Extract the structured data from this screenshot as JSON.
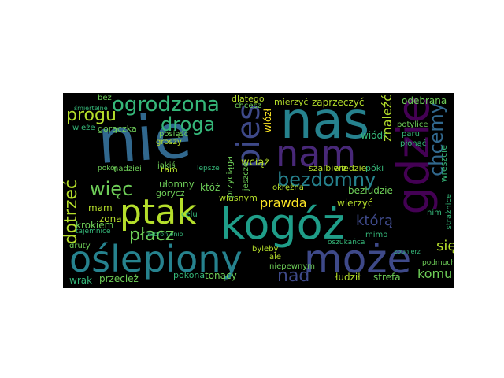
{
  "palette": {
    "yellow": "#fde725",
    "yellowgreen": "#b5de2b",
    "green": "#6ece58",
    "seagreen": "#35b779",
    "teal": "#1f9e89",
    "tealblue": "#26828e",
    "blue": "#31688e",
    "indigo": "#3e4989",
    "purple": "#482878",
    "deeppurple": "#440154"
  },
  "words": {
    "nie": "nie",
    "nas": "nas",
    "nam": "nam",
    "kogoz": "kogóż",
    "oslepiony": "oślepiony",
    "moze": "może",
    "ptak": "ptak",
    "gdzie": "gdzie",
    "pies": "pies",
    "ogrodzona": "ogrodzona",
    "droga": "droga",
    "progu": "progu",
    "bezdomny": "bezdomny",
    "chcemy": "chcemy",
    "dotrzec": "dotrzeć",
    "wiec": "więc",
    "placz": "płacz",
    "nad": "nad",
    "prawda": "prawda",
    "ktora": "którą",
    "sie": "się",
    "komu": "komu",
    "zaprzeczyc": "zaprzeczyć",
    "znalezc": "znaleźć",
    "odebrana": "odebrana",
    "mierzyc": "mierzyć",
    "wciaz": "wciąż",
    "wiozl": "wiózł",
    "mam": "mam",
    "zona": "zona",
    "krokiem": "krokiem",
    "wrak": "wrak",
    "przeciez": "przecież",
    "pokona": "pokona",
    "tonacy": "tonący",
    "ludzil": "łudził",
    "strefa": "strefa",
    "ulomny": "ułomny",
    "ktoz": "któż",
    "bezludzie": "bezludzie",
    "wierzyc": "wierzyć",
    "mimo": "mimo",
    "wiodl": "wiódł",
    "poki": "póki",
    "szalbierz": "szalbierz",
    "wiedzie": "wiedzie",
    "wlasnym": "własnym",
    "byleby": "byleby",
    "okrezna": "okrężna",
    "ale": "ale",
    "niepewnym": "niepewnym",
    "dlatego": "dlatego",
    "chcesz": "chcesz",
    "bez": "bez",
    "tam": "tam",
    "jakis": "jakiś",
    "gorycz": "gorycz",
    "nadziei": "nadziei",
    "tajemnice": "tajemnice",
    "celu": "celu",
    "druty": "druty",
    "przyciaga": "przyciąga",
    "jeszcze": "jeszcze",
    "wreszcie": "wreszcie",
    "nim": "nim",
    "straznice": "strażnice",
    "paru": "paru",
    "plonac": "płonąć",
    "potylice": "potylice",
    "oszukanca": "oszukańca",
    "goraczka": "gorączka",
    "posiasc": "posiąść",
    "groszy": "groszy",
    "wieze": "wieże",
    "podmuch": "podmuch",
    "lepsze": "lepsze",
    "zabronionio": "zabronionio",
    "pokoj": "pokój",
    "smiertelne": "śmiertelne",
    "zounier": "zounierz"
  }
}
